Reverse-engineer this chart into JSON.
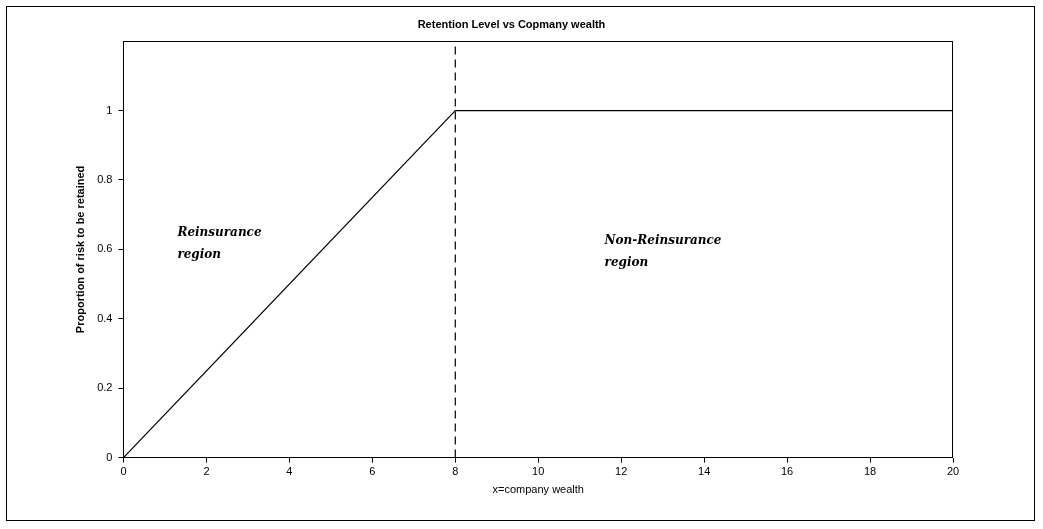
{
  "chart_data": {
    "type": "line",
    "title": "Retention Level vs Copmany wealth",
    "xlabel": "x=company wealth",
    "ylabel": "Proportion of risk to be retained",
    "series": [
      {
        "color": "#000000",
        "x": [
          0,
          8,
          20
        ],
        "values": [
          0,
          1,
          1
        ]
      }
    ],
    "ref_lines": [
      {
        "axis": "x",
        "value": 8,
        "line_style": "dashed",
        "color": "#000000"
      }
    ],
    "xlim": [
      0,
      20
    ],
    "xticks": [
      0,
      2,
      4,
      6,
      8,
      10,
      12,
      14,
      16,
      18,
      20
    ],
    "ylim": [
      0,
      1.2
    ],
    "yticks": [
      0,
      0.2,
      0.4,
      0.6,
      0.8,
      1
    ],
    "grid": false,
    "legend": false,
    "marker": "none",
    "line_style": "solid",
    "annotations": [
      "Reinsurance region",
      "Non-Reinsurance region"
    ]
  }
}
